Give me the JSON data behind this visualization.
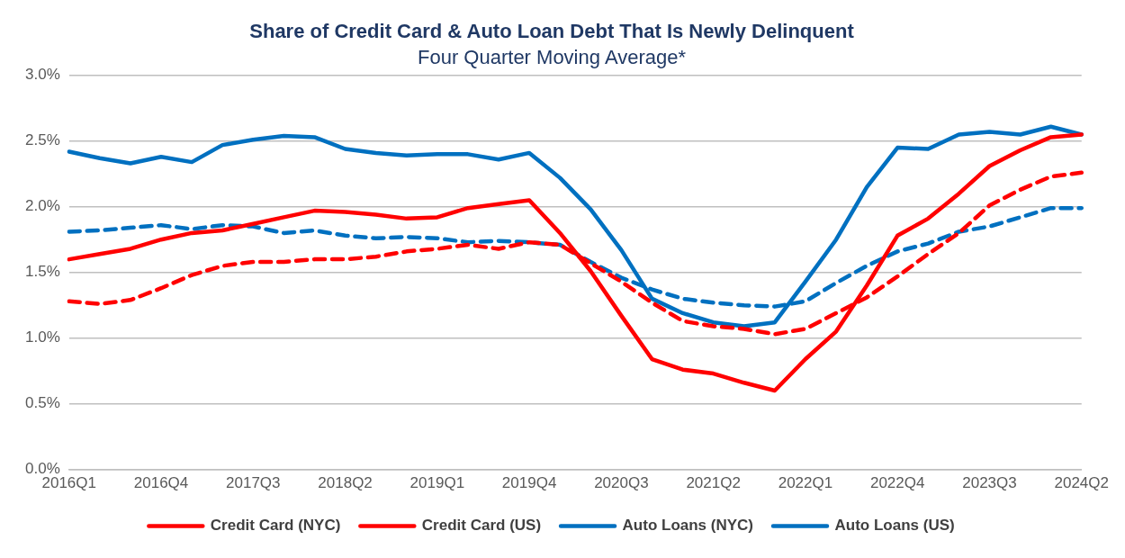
{
  "chart_data": {
    "type": "line",
    "title": "Share of Credit Card & Auto Loan Debt That Is Newly Delinquent",
    "subtitle": "Four Quarter Moving Average*",
    "categories": [
      "2016Q1",
      null,
      null,
      "2016Q4",
      null,
      null,
      "2017Q3",
      null,
      null,
      "2018Q2",
      null,
      null,
      "2019Q1",
      null,
      null,
      "2019Q4",
      null,
      null,
      "2020Q3",
      null,
      null,
      "2021Q2",
      null,
      null,
      "2022Q1",
      null,
      null,
      "2022Q4",
      null,
      null,
      "2023Q3",
      null,
      null,
      "2024Q2"
    ],
    "ylim": [
      0,
      3
    ],
    "yticks": [
      {
        "value": 0,
        "label": "0.0%"
      },
      {
        "value": 0.5,
        "label": "0.5%"
      },
      {
        "value": 1,
        "label": "1.0%"
      },
      {
        "value": 1.5,
        "label": "1.5%"
      },
      {
        "value": 2,
        "label": "2.0%"
      },
      {
        "value": 2.5,
        "label": "2.5%"
      },
      {
        "value": 3,
        "label": "3.0%"
      }
    ],
    "grid": "y",
    "legend": "bottom",
    "marker": "none",
    "series": [
      {
        "name": "Credit Card (NYC)",
        "color": "#ff0000",
        "line_style": "solid",
        "values": [
          1.6,
          1.64,
          1.68,
          1.75,
          1.8,
          1.82,
          1.87,
          1.92,
          1.97,
          1.96,
          1.94,
          1.91,
          1.92,
          1.99,
          2.02,
          2.05,
          1.8,
          1.51,
          1.17,
          0.84,
          0.76,
          0.73,
          0.66,
          0.6,
          0.84,
          1.05,
          1.4,
          1.78,
          1.91,
          2.1,
          2.31,
          2.43,
          2.53,
          2.55
        ]
      },
      {
        "name": "Credit Card (US)",
        "color": "#ff0000",
        "line_style": "dashed",
        "values": [
          1.28,
          1.26,
          1.29,
          1.38,
          1.48,
          1.55,
          1.58,
          1.58,
          1.6,
          1.6,
          1.62,
          1.66,
          1.68,
          1.71,
          1.68,
          1.73,
          1.71,
          1.57,
          1.43,
          1.27,
          1.13,
          1.09,
          1.07,
          1.03,
          1.07,
          1.19,
          1.31,
          1.47,
          1.64,
          1.8,
          2.01,
          2.13,
          2.23,
          2.26
        ]
      },
      {
        "name": "Auto Loans (NYC)",
        "color": "#0070c0",
        "line_style": "solid",
        "values": [
          2.42,
          2.37,
          2.33,
          2.38,
          2.34,
          2.47,
          2.51,
          2.54,
          2.53,
          2.44,
          2.41,
          2.39,
          2.4,
          2.4,
          2.36,
          2.41,
          2.22,
          1.98,
          1.67,
          1.3,
          1.19,
          1.12,
          1.09,
          1.12,
          1.43,
          1.75,
          2.15,
          2.45,
          2.44,
          2.55,
          2.57,
          2.55,
          2.61,
          2.55
        ]
      },
      {
        "name": "Auto Loans (US)",
        "color": "#0070c0",
        "line_style": "dashed",
        "values": [
          1.81,
          1.82,
          1.84,
          1.86,
          1.83,
          1.86,
          1.85,
          1.8,
          1.82,
          1.78,
          1.76,
          1.77,
          1.76,
          1.73,
          1.74,
          1.73,
          1.71,
          1.58,
          1.46,
          1.37,
          1.3,
          1.27,
          1.25,
          1.24,
          1.28,
          1.42,
          1.55,
          1.66,
          1.72,
          1.81,
          1.85,
          1.92,
          1.99,
          1.99
        ]
      }
    ]
  }
}
